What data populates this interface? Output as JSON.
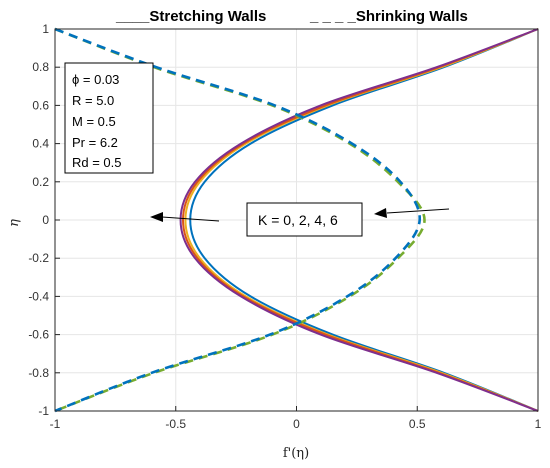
{
  "chart_data": {
    "type": "line",
    "xlabel": "f'(η)",
    "ylabel": "η",
    "xlim": [
      -1,
      1
    ],
    "ylim": [
      -1,
      1
    ],
    "xticks": [
      "-1",
      "-0.5",
      "0",
      "0.5",
      "1"
    ],
    "yticks": [
      "-1",
      "-0.8",
      "-0.6",
      "-0.4",
      "-0.2",
      "0",
      "0.2",
      "0.4",
      "0.6",
      "0.8",
      "1"
    ],
    "grid": true,
    "legend": {
      "stretching": "____Stretching Walls",
      "shrinking": "_ _ _ _Shrinking Walls"
    },
    "params": [
      "ϕ = 0.03",
      "R = 5.0",
      "M = 0.5",
      "Pr = 6.2",
      "Rd = 0.5"
    ],
    "annotation": "K = 0, 2, 4, 6",
    "series": [
      {
        "group": "stretching",
        "style": "solid",
        "color": "#0072BD",
        "y": [
          -1,
          -0.8,
          -0.6,
          -0.4,
          -0.2,
          0,
          0.2,
          0.4,
          0.6,
          0.8,
          1
        ],
        "x": [
          1,
          0.61,
          0.15,
          -0.19,
          -0.38,
          -0.44,
          -0.38,
          -0.19,
          0.15,
          0.61,
          1
        ]
      },
      {
        "group": "stretching",
        "style": "solid",
        "color": "#EDB120",
        "y": [
          -1,
          -0.8,
          -0.6,
          -0.4,
          -0.2,
          0,
          0.2,
          0.4,
          0.6,
          0.8,
          1
        ],
        "x": [
          1,
          0.6,
          0.13,
          -0.21,
          -0.4,
          -0.46,
          -0.4,
          -0.21,
          0.13,
          0.6,
          1
        ]
      },
      {
        "group": "stretching",
        "style": "solid",
        "color": "#D95319",
        "y": [
          -1,
          -0.8,
          -0.6,
          -0.4,
          -0.2,
          0,
          0.2,
          0.4,
          0.6,
          0.8,
          1
        ],
        "x": [
          1,
          0.59,
          0.12,
          -0.22,
          -0.41,
          -0.47,
          -0.41,
          -0.22,
          0.12,
          0.59,
          1
        ]
      },
      {
        "group": "stretching",
        "style": "solid",
        "color": "#7E2F8E",
        "y": [
          -1,
          -0.8,
          -0.6,
          -0.4,
          -0.2,
          0,
          0.2,
          0.4,
          0.6,
          0.8,
          1
        ],
        "x": [
          1,
          0.58,
          0.1,
          -0.23,
          -0.42,
          -0.48,
          -0.42,
          -0.23,
          0.1,
          0.58,
          1
        ]
      },
      {
        "group": "shrinking",
        "style": "dashed",
        "color": "#77AC30",
        "y": [
          1,
          0.8,
          0.6,
          0.4,
          0.2,
          0,
          -0.2,
          -0.4,
          -0.6,
          -0.8,
          -1
        ],
        "x": [
          -1,
          -0.59,
          -0.1,
          0.22,
          0.42,
          0.53,
          0.42,
          0.22,
          -0.1,
          -0.59,
          -1
        ]
      },
      {
        "group": "shrinking",
        "style": "dashed",
        "color": "#0072BD",
        "y": [
          1,
          0.8,
          0.6,
          0.4,
          0.2,
          0,
          -0.2,
          -0.4,
          -0.6,
          -0.8,
          -1
        ],
        "x": [
          -1,
          -0.58,
          -0.09,
          0.23,
          0.43,
          0.51,
          0.41,
          0.21,
          -0.11,
          -0.6,
          -1
        ]
      }
    ]
  }
}
